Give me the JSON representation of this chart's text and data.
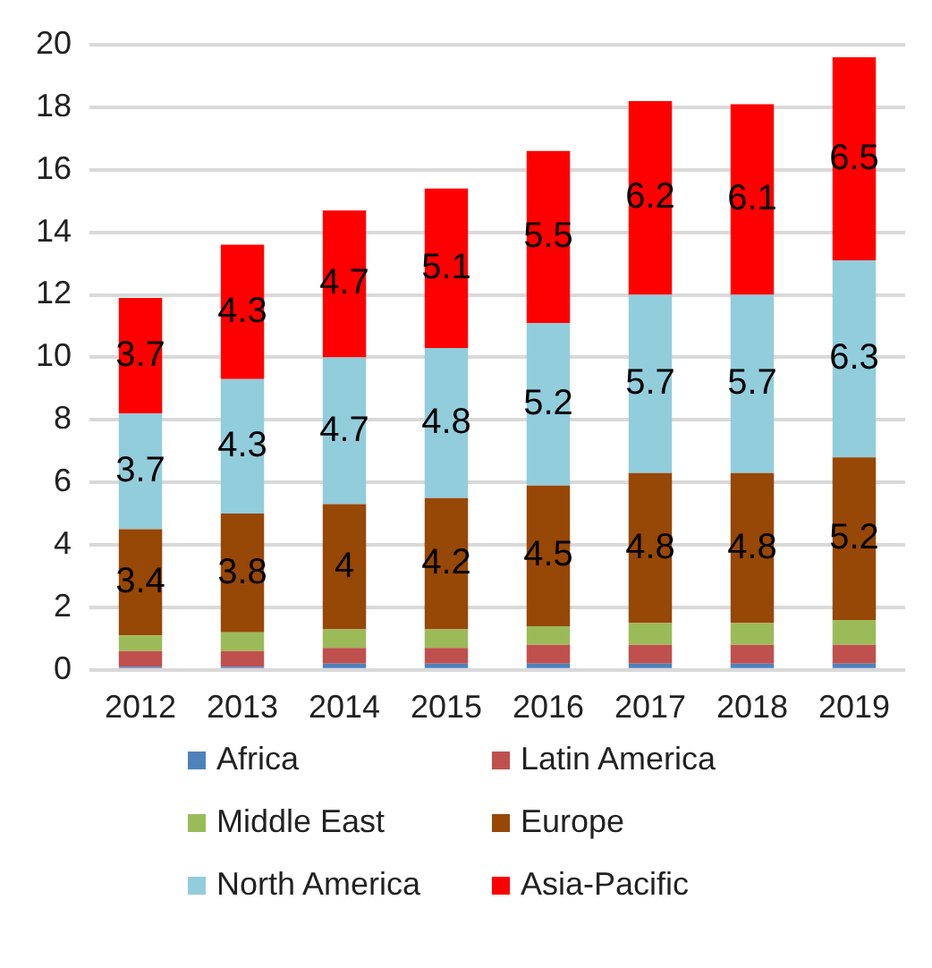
{
  "chart_data": {
    "type": "bar",
    "stacked": true,
    "categories": [
      "2012",
      "2013",
      "2014",
      "2015",
      "2016",
      "2017",
      "2018",
      "2019"
    ],
    "series": [
      {
        "name": "Africa",
        "color": "#4f81bd",
        "values": [
          0.1,
          0.1,
          0.2,
          0.2,
          0.2,
          0.2,
          0.2,
          0.2
        ]
      },
      {
        "name": "Latin America",
        "color": "#c0504d",
        "values": [
          0.5,
          0.5,
          0.5,
          0.5,
          0.6,
          0.6,
          0.6,
          0.6
        ]
      },
      {
        "name": "Middle East",
        "color": "#9bbb59",
        "values": [
          0.5,
          0.6,
          0.6,
          0.6,
          0.6,
          0.7,
          0.7,
          0.8
        ]
      },
      {
        "name": "Europe",
        "color": "#974706",
        "values": [
          3.4,
          3.8,
          4,
          4.2,
          4.5,
          4.8,
          4.8,
          5.2
        ],
        "value_labels": [
          "3.4",
          "3.8",
          "4",
          "4.2",
          "4.5",
          "4.8",
          "4.8",
          "5.2"
        ]
      },
      {
        "name": "North America",
        "color": "#92cddc",
        "values": [
          3.7,
          4.3,
          4.7,
          4.8,
          5.2,
          5.7,
          5.7,
          6.3
        ],
        "value_labels": [
          "3.7",
          "4.3",
          "4.7",
          "4.8",
          "5.2",
          "5.7",
          "5.7",
          "6.3"
        ]
      },
      {
        "name": "Asia-Pacific",
        "color": "#ff0000",
        "values": [
          3.7,
          4.3,
          4.7,
          5.1,
          5.5,
          6.2,
          6.1,
          6.5
        ],
        "value_labels": [
          "3.7",
          "4.3",
          "4.7",
          "5.1",
          "5.5",
          "6.2",
          "6.1",
          "6.5"
        ]
      }
    ],
    "ylim": [
      0,
      20
    ],
    "yticks": [
      0,
      2,
      4,
      6,
      8,
      10,
      12,
      14,
      16,
      18,
      20
    ],
    "grid": "y",
    "legend": "bottom"
  }
}
